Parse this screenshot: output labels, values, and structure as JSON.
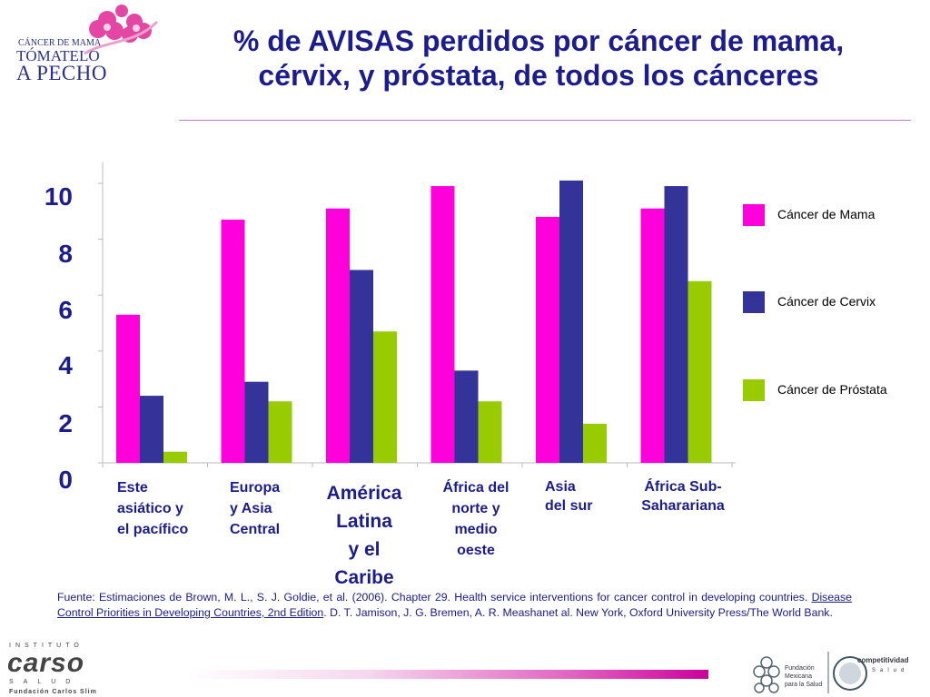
{
  "logo": {
    "line1": "CÁNCER DE MAMA",
    "line2": "TÓMATELO",
    "line3": "A PECHO"
  },
  "title": {
    "line1": "% de AVISAS perdidos por cáncer de mama,",
    "line2": "cérvix, y próstata, de todos los cánceres"
  },
  "colors": {
    "mama": "#ff00dd",
    "cervix": "#333399",
    "prostata": "#99cc00",
    "title": "#1c1c8c"
  },
  "chart_data": {
    "type": "bar",
    "ylim": [
      0,
      10.5
    ],
    "yticks": [
      "0",
      "2",
      "4",
      "6",
      "8",
      "10"
    ],
    "categories": [
      [
        "Este",
        "asiático y",
        "el pacífico"
      ],
      [
        "Europa",
        "y Asia",
        "Central"
      ],
      [
        "América",
        "Latina",
        "y el",
        "Caribe"
      ],
      [
        "África del",
        "norte y",
        "medio",
        "oeste"
      ],
      [
        "Asia",
        "del sur"
      ],
      [
        "África Sub-",
        "Saharariana"
      ]
    ],
    "series": [
      {
        "name": "Cáncer de Mama",
        "values": [
          5.3,
          8.7,
          9.1,
          9.9,
          8.8,
          9.1
        ]
      },
      {
        "name": "Cáncer de Cervix",
        "values": [
          2.4,
          2.9,
          6.9,
          3.3,
          10.1,
          9.9
        ]
      },
      {
        "name": "Cáncer de Próstata",
        "values": [
          0.4,
          2.2,
          4.7,
          2.2,
          1.4,
          6.5
        ]
      }
    ],
    "legend_position": "right",
    "grid": false
  },
  "source": {
    "prefix": "Fuente: Estimaciones de Brown, M. L., S. J. Goldie, et al. (2006). Chapter 29. Health service interventions for cancer control in developing countries. ",
    "link": "Disease Control Priorities in Developing Countries, 2nd Edition",
    "suffix": ". D. T. Jamison, J. G. Bremen, A. R. Meashanet al. New York, Oxford University Press/The World Bank."
  },
  "footer": {
    "carso_top": "INSTITUTO",
    "carso_name": "carso",
    "carso_salud": "SALUD",
    "carso_sub": "Fundación Carlos Slim",
    "fundacion_line1": "Fundación",
    "fundacion_line2": "Mexicana",
    "fundacion_line3": "para la Salud",
    "competitividad_line1": "competitividad",
    "competitividad_line2": "Salud"
  }
}
